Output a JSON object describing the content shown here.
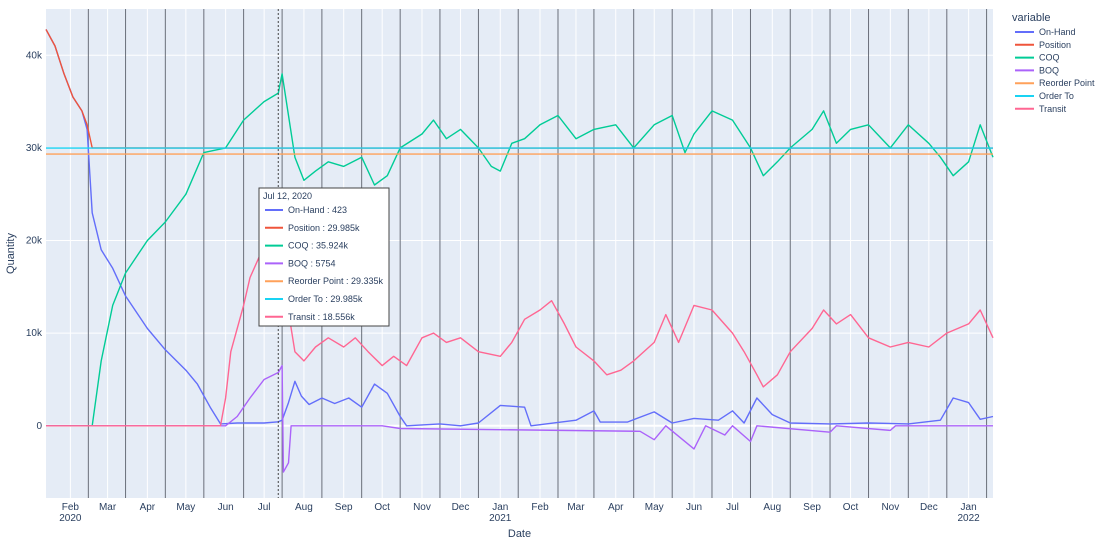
{
  "chart_data": {
    "type": "line",
    "xlabel": "Date",
    "ylabel": "Quantity",
    "x_range": [
      "2020-01-13",
      "2022-01-20"
    ],
    "ylim": [
      -7800,
      45000
    ],
    "grid": true,
    "y_ticks": [
      {
        "value": 0,
        "label": "0"
      },
      {
        "value": 10000,
        "label": "10k"
      },
      {
        "value": 20000,
        "label": "20k"
      },
      {
        "value": 30000,
        "label": "30k"
      },
      {
        "value": 40000,
        "label": "40k"
      }
    ],
    "x_ticks": [
      {
        "date": "2020-02-01",
        "label": "Feb",
        "sub": "2020"
      },
      {
        "date": "2020-03-01",
        "label": "Mar",
        "sub": ""
      },
      {
        "date": "2020-04-01",
        "label": "Apr",
        "sub": ""
      },
      {
        "date": "2020-05-01",
        "label": "May",
        "sub": ""
      },
      {
        "date": "2020-06-01",
        "label": "Jun",
        "sub": ""
      },
      {
        "date": "2020-07-01",
        "label": "Jul",
        "sub": ""
      },
      {
        "date": "2020-08-01",
        "label": "Aug",
        "sub": ""
      },
      {
        "date": "2020-09-01",
        "label": "Sep",
        "sub": ""
      },
      {
        "date": "2020-10-01",
        "label": "Oct",
        "sub": ""
      },
      {
        "date": "2020-11-01",
        "label": "Nov",
        "sub": ""
      },
      {
        "date": "2020-12-01",
        "label": "Dec",
        "sub": ""
      },
      {
        "date": "2021-01-01",
        "label": "Jan",
        "sub": "2021"
      },
      {
        "date": "2021-02-01",
        "label": "Feb",
        "sub": ""
      },
      {
        "date": "2021-03-01",
        "label": "Mar",
        "sub": ""
      },
      {
        "date": "2021-04-01",
        "label": "Apr",
        "sub": ""
      },
      {
        "date": "2021-05-01",
        "label": "May",
        "sub": ""
      },
      {
        "date": "2021-06-01",
        "label": "Jun",
        "sub": ""
      },
      {
        "date": "2021-07-01",
        "label": "Jul",
        "sub": ""
      },
      {
        "date": "2021-08-01",
        "label": "Aug",
        "sub": ""
      },
      {
        "date": "2021-09-01",
        "label": "Sep",
        "sub": ""
      },
      {
        "date": "2021-10-01",
        "label": "Oct",
        "sub": ""
      },
      {
        "date": "2021-11-01",
        "label": "Nov",
        "sub": ""
      },
      {
        "date": "2021-12-01",
        "label": "Dec",
        "sub": ""
      },
      {
        "date": "2022-01-01",
        "label": "Jan",
        "sub": "2022"
      }
    ],
    "vertical_markers": [
      "2020-02-15",
      "2020-03-15",
      "2020-04-15",
      "2020-05-15",
      "2020-06-15",
      "2020-07-15",
      "2020-08-15",
      "2020-09-15",
      "2020-10-15",
      "2020-11-15",
      "2020-12-15",
      "2021-01-15",
      "2021-02-15",
      "2021-03-15",
      "2021-04-15",
      "2021-05-15",
      "2021-06-15",
      "2021-07-15",
      "2021-08-15",
      "2021-09-15",
      "2021-10-15",
      "2021-11-15",
      "2021-12-15",
      "2022-01-15"
    ],
    "hover_line_date": "2020-07-12",
    "legend": {
      "title": "variable",
      "position": "right"
    },
    "series": [
      {
        "name": "On-Hand",
        "color": "#636efa",
        "points": [
          [
            "2020-01-13",
            42800
          ],
          [
            "2020-01-20",
            41000
          ],
          [
            "2020-01-27",
            38000
          ],
          [
            "2020-02-03",
            35500
          ],
          [
            "2020-02-10",
            34000
          ],
          [
            "2020-02-14",
            32000
          ],
          [
            "2020-02-18",
            23000
          ],
          [
            "2020-02-25",
            19000
          ],
          [
            "2020-03-05",
            17000
          ],
          [
            "2020-03-15",
            14000
          ],
          [
            "2020-04-01",
            10500
          ],
          [
            "2020-04-15",
            8200
          ],
          [
            "2020-05-01",
            6000
          ],
          [
            "2020-05-10",
            4500
          ],
          [
            "2020-05-20",
            2000
          ],
          [
            "2020-05-28",
            200
          ],
          [
            "2020-06-10",
            300
          ],
          [
            "2020-07-01",
            300
          ],
          [
            "2020-07-12",
            423
          ],
          [
            "2020-07-15",
            600
          ],
          [
            "2020-07-20",
            2500
          ],
          [
            "2020-07-25",
            4800
          ],
          [
            "2020-07-30",
            3200
          ],
          [
            "2020-08-05",
            2300
          ],
          [
            "2020-08-15",
            3000
          ],
          [
            "2020-08-25",
            2400
          ],
          [
            "2020-09-05",
            3000
          ],
          [
            "2020-09-15",
            2000
          ],
          [
            "2020-09-25",
            4500
          ],
          [
            "2020-10-05",
            3500
          ],
          [
            "2020-10-15",
            1000
          ],
          [
            "2020-10-20",
            0
          ],
          [
            "2020-11-15",
            200
          ],
          [
            "2020-12-01",
            0
          ],
          [
            "2020-12-15",
            300
          ],
          [
            "2021-01-01",
            2200
          ],
          [
            "2021-01-20",
            2000
          ],
          [
            "2021-01-25",
            0
          ],
          [
            "2021-03-01",
            600
          ],
          [
            "2021-03-15",
            1600
          ],
          [
            "2021-03-20",
            400
          ],
          [
            "2021-04-10",
            400
          ],
          [
            "2021-05-01",
            1500
          ],
          [
            "2021-05-15",
            300
          ],
          [
            "2021-06-01",
            800
          ],
          [
            "2021-06-20",
            600
          ],
          [
            "2021-07-01",
            1600
          ],
          [
            "2021-07-10",
            300
          ],
          [
            "2021-07-20",
            3000
          ],
          [
            "2021-08-01",
            1200
          ],
          [
            "2021-08-15",
            300
          ],
          [
            "2021-09-15",
            200
          ],
          [
            "2021-10-15",
            300
          ],
          [
            "2021-11-15",
            200
          ],
          [
            "2021-12-10",
            600
          ],
          [
            "2021-12-20",
            3000
          ],
          [
            "2022-01-01",
            2500
          ],
          [
            "2022-01-10",
            700
          ],
          [
            "2022-01-20",
            1000
          ]
        ]
      },
      {
        "name": "Position",
        "color": "#ef553b",
        "points": [
          [
            "2020-01-13",
            42800
          ],
          [
            "2020-01-20",
            41000
          ],
          [
            "2020-01-27",
            38000
          ],
          [
            "2020-02-03",
            35500
          ],
          [
            "2020-02-10",
            34000
          ],
          [
            "2020-02-14",
            32500
          ],
          [
            "2020-02-18",
            30000
          ],
          [
            "2020-07-12",
            29985
          ],
          [
            "2022-01-20",
            29985
          ]
        ]
      },
      {
        "name": "COQ",
        "color": "#00cc96",
        "points": [
          [
            "2020-01-13",
            0
          ],
          [
            "2020-02-18",
            0
          ],
          [
            "2020-02-25",
            7000
          ],
          [
            "2020-03-05",
            13000
          ],
          [
            "2020-03-15",
            16500
          ],
          [
            "2020-04-01",
            20000
          ],
          [
            "2020-04-15",
            22000
          ],
          [
            "2020-05-01",
            25000
          ],
          [
            "2020-05-15",
            29500
          ],
          [
            "2020-06-01",
            30000
          ],
          [
            "2020-06-15",
            33000
          ],
          [
            "2020-07-01",
            35000
          ],
          [
            "2020-07-12",
            35924
          ],
          [
            "2020-07-15",
            38000
          ],
          [
            "2020-07-20",
            33500
          ],
          [
            "2020-07-25",
            29000
          ],
          [
            "2020-08-01",
            26500
          ],
          [
            "2020-08-10",
            27500
          ],
          [
            "2020-08-20",
            28500
          ],
          [
            "2020-09-01",
            28000
          ],
          [
            "2020-09-15",
            29000
          ],
          [
            "2020-09-25",
            26000
          ],
          [
            "2020-10-05",
            27000
          ],
          [
            "2020-10-15",
            30000
          ],
          [
            "2020-11-01",
            31500
          ],
          [
            "2020-11-10",
            33000
          ],
          [
            "2020-11-20",
            31000
          ],
          [
            "2020-12-01",
            32000
          ],
          [
            "2020-12-15",
            30000
          ],
          [
            "2020-12-25",
            28000
          ],
          [
            "2021-01-01",
            27500
          ],
          [
            "2021-01-10",
            30500
          ],
          [
            "2021-01-20",
            31000
          ],
          [
            "2021-02-01",
            32500
          ],
          [
            "2021-02-15",
            33500
          ],
          [
            "2021-03-01",
            31000
          ],
          [
            "2021-03-15",
            32000
          ],
          [
            "2021-04-01",
            32500
          ],
          [
            "2021-04-15",
            30000
          ],
          [
            "2021-05-01",
            32500
          ],
          [
            "2021-05-15",
            33500
          ],
          [
            "2021-05-25",
            29500
          ],
          [
            "2021-06-01",
            31500
          ],
          [
            "2021-06-15",
            34000
          ],
          [
            "2021-07-01",
            33000
          ],
          [
            "2021-07-15",
            30000
          ],
          [
            "2021-07-25",
            27000
          ],
          [
            "2021-08-05",
            28500
          ],
          [
            "2021-08-15",
            30000
          ],
          [
            "2021-09-01",
            32000
          ],
          [
            "2021-09-10",
            34000
          ],
          [
            "2021-09-20",
            30500
          ],
          [
            "2021-10-01",
            32000
          ],
          [
            "2021-10-15",
            32500
          ],
          [
            "2021-11-01",
            30000
          ],
          [
            "2021-11-15",
            32500
          ],
          [
            "2021-12-01",
            30500
          ],
          [
            "2021-12-10",
            29000
          ],
          [
            "2021-12-20",
            27000
          ],
          [
            "2022-01-01",
            28500
          ],
          [
            "2022-01-10",
            32500
          ],
          [
            "2022-01-20",
            29000
          ]
        ]
      },
      {
        "name": "BOQ",
        "color": "#ab63fa",
        "points": [
          [
            "2020-01-13",
            0
          ],
          [
            "2020-06-01",
            0
          ],
          [
            "2020-06-10",
            1000
          ],
          [
            "2020-06-20",
            3000
          ],
          [
            "2020-07-01",
            5000
          ],
          [
            "2020-07-12",
            5754
          ],
          [
            "2020-07-15",
            6500
          ],
          [
            "2020-07-16",
            -5000
          ],
          [
            "2020-07-20",
            -4000
          ],
          [
            "2020-07-22",
            0
          ],
          [
            "2020-10-01",
            0
          ],
          [
            "2020-10-15",
            -300
          ],
          [
            "2021-04-20",
            -600
          ],
          [
            "2021-05-01",
            -1500
          ],
          [
            "2021-05-10",
            0
          ],
          [
            "2021-06-01",
            -2500
          ],
          [
            "2021-06-10",
            0
          ],
          [
            "2021-06-25",
            -1000
          ],
          [
            "2021-07-01",
            0
          ],
          [
            "2021-07-15",
            -1700
          ],
          [
            "2021-07-20",
            0
          ],
          [
            "2021-09-15",
            -700
          ],
          [
            "2021-09-20",
            0
          ],
          [
            "2021-11-01",
            -500
          ],
          [
            "2021-11-05",
            0
          ],
          [
            "2022-01-20",
            0
          ]
        ]
      },
      {
        "name": "Reorder Point",
        "color": "#ffa15a",
        "points": [
          [
            "2020-01-13",
            29335
          ],
          [
            "2022-01-20",
            29335
          ]
        ]
      },
      {
        "name": "Order To",
        "color": "#19d3f3",
        "points": [
          [
            "2020-01-13",
            29985
          ],
          [
            "2022-01-20",
            29985
          ]
        ]
      },
      {
        "name": "Transit",
        "color": "#ff6692",
        "points": [
          [
            "2020-01-13",
            0
          ],
          [
            "2020-05-28",
            0
          ],
          [
            "2020-06-01",
            3000
          ],
          [
            "2020-06-05",
            8000
          ],
          [
            "2020-06-15",
            13000
          ],
          [
            "2020-06-20",
            16000
          ],
          [
            "2020-06-28",
            18500
          ],
          [
            "2020-07-12",
            18556
          ],
          [
            "2020-07-18",
            14000
          ],
          [
            "2020-07-25",
            8000
          ],
          [
            "2020-08-01",
            7000
          ],
          [
            "2020-08-10",
            8500
          ],
          [
            "2020-08-20",
            9500
          ],
          [
            "2020-09-01",
            8500
          ],
          [
            "2020-09-10",
            9500
          ],
          [
            "2020-09-20",
            8000
          ],
          [
            "2020-10-01",
            6500
          ],
          [
            "2020-10-10",
            7500
          ],
          [
            "2020-10-20",
            6500
          ],
          [
            "2020-11-01",
            9500
          ],
          [
            "2020-11-10",
            10000
          ],
          [
            "2020-11-20",
            9000
          ],
          [
            "2020-12-01",
            9500
          ],
          [
            "2020-12-15",
            8000
          ],
          [
            "2021-01-01",
            7500
          ],
          [
            "2021-01-10",
            9000
          ],
          [
            "2021-01-20",
            11500
          ],
          [
            "2021-02-01",
            12500
          ],
          [
            "2021-02-10",
            13500
          ],
          [
            "2021-02-20",
            11000
          ],
          [
            "2021-03-01",
            8500
          ],
          [
            "2021-03-15",
            7000
          ],
          [
            "2021-03-25",
            5500
          ],
          [
            "2021-04-05",
            6000
          ],
          [
            "2021-04-15",
            7000
          ],
          [
            "2021-05-01",
            9000
          ],
          [
            "2021-05-10",
            12000
          ],
          [
            "2021-05-20",
            9000
          ],
          [
            "2021-06-01",
            13000
          ],
          [
            "2021-06-15",
            12500
          ],
          [
            "2021-07-01",
            10000
          ],
          [
            "2021-07-10",
            8000
          ],
          [
            "2021-07-20",
            5500
          ],
          [
            "2021-07-25",
            4200
          ],
          [
            "2021-08-05",
            5500
          ],
          [
            "2021-08-15",
            8000
          ],
          [
            "2021-09-01",
            10500
          ],
          [
            "2021-09-10",
            12500
          ],
          [
            "2021-09-20",
            11000
          ],
          [
            "2021-10-01",
            12000
          ],
          [
            "2021-10-15",
            9500
          ],
          [
            "2021-11-01",
            8500
          ],
          [
            "2021-11-15",
            9000
          ],
          [
            "2021-12-01",
            8500
          ],
          [
            "2021-12-15",
            10000
          ],
          [
            "2022-01-01",
            11000
          ],
          [
            "2022-01-10",
            12500
          ],
          [
            "2022-01-20",
            9500
          ]
        ]
      }
    ],
    "tooltip": {
      "title": "Jul 12, 2020",
      "rows": [
        {
          "series": "On-Hand",
          "text": "On-Hand : 423",
          "color": "#636efa"
        },
        {
          "series": "Position",
          "text": "Position : 29.985k",
          "color": "#ef553b"
        },
        {
          "series": "COQ",
          "text": "COQ : 35.924k",
          "color": "#00cc96"
        },
        {
          "series": "BOQ",
          "text": "BOQ : 5754",
          "color": "#ab63fa"
        },
        {
          "series": "Reorder Point",
          "text": "Reorder Point : 29.335k",
          "color": "#ffa15a"
        },
        {
          "series": "Order To",
          "text": "Order To : 29.985k",
          "color": "#19d3f3"
        },
        {
          "series": "Transit",
          "text": "Transit : 18.556k",
          "color": "#ff6692"
        }
      ]
    }
  },
  "colors": {
    "plot_bg": "#e5ecf6",
    "grid": "#ffffff",
    "marker_line": "#6a6f7a"
  }
}
